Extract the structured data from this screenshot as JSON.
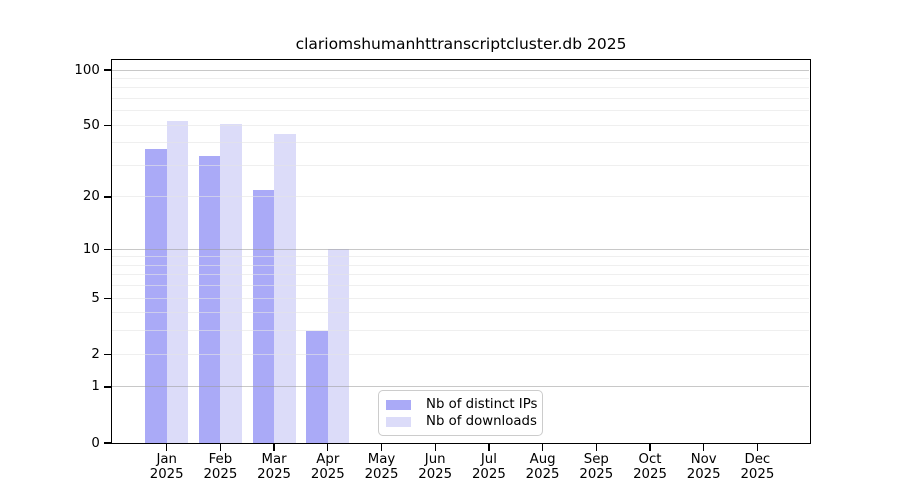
{
  "title": "clariomshumanhttranscriptcluster.db 2025",
  "legend": {
    "items": [
      {
        "label": "Nb of distinct IPs",
        "color": "#aaaaf7"
      },
      {
        "label": "Nb of downloads",
        "color": "#dcdcf9"
      }
    ]
  },
  "chart_data": {
    "type": "bar",
    "title": "clariomshumanhttranscriptcluster.db 2025",
    "xlabel": "",
    "ylabel": "",
    "scale": "log10(1+x)",
    "ylim": [
      0,
      100
    ],
    "grid": "on",
    "legend_position": "lower center",
    "categories": [
      "Jan",
      "Feb",
      "Mar",
      "Apr",
      "May",
      "Jun",
      "Jul",
      "Aug",
      "Sep",
      "Oct",
      "Nov",
      "Dec"
    ],
    "year_label": "2025",
    "series": [
      {
        "name": "Nb of distinct IPs",
        "color": "#aaaaf7",
        "values": [
          37,
          34,
          22,
          3,
          0,
          0,
          0,
          0,
          0,
          0,
          0,
          0
        ]
      },
      {
        "name": "Nb of downloads",
        "color": "#dcdcf9",
        "values": [
          53,
          51,
          45,
          10,
          0,
          0,
          0,
          0,
          0,
          0,
          0,
          0
        ]
      }
    ],
    "y_ticks": [
      0,
      1,
      2,
      5,
      10,
      20,
      50,
      100
    ],
    "grid_major": [
      1,
      10,
      100
    ],
    "grid_minor": [
      2,
      3,
      4,
      5,
      6,
      7,
      8,
      9,
      20,
      30,
      40,
      50,
      60,
      70,
      80,
      90
    ]
  }
}
